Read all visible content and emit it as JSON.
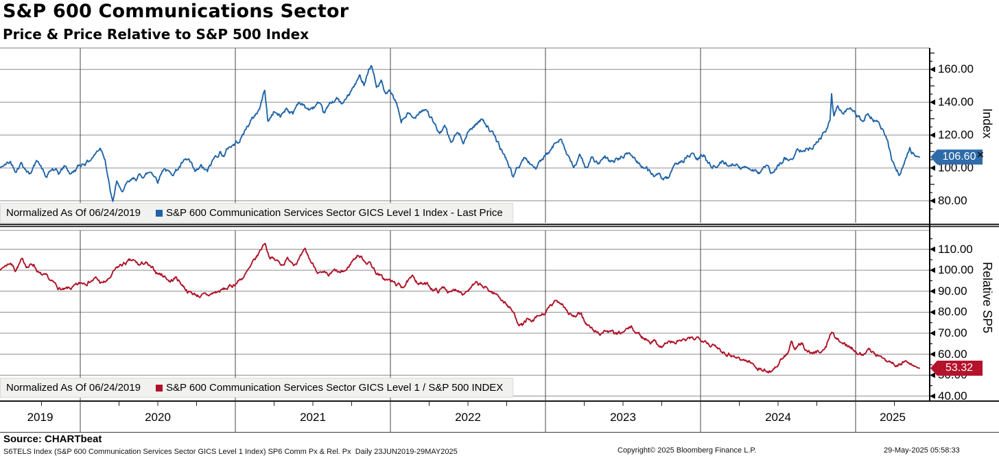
{
  "header": {
    "title": "S&P 600 Communications Sector",
    "subtitle": "Price & Price Relative to S&P 500 Index"
  },
  "panels": {
    "top": {
      "normalized_label": "Normalized As Of 06/24/2019",
      "series_label": "S&P 600 Communication Services Sector GICS Level 1 Index - Last Price",
      "axis_title": "Index",
      "last_price": "106.60"
    },
    "bottom": {
      "normalized_label": "Normalized As Of 06/24/2019",
      "series_label": "S&P 600 Communication Services Sector GICS Level 1 / S&P 500 INDEX",
      "axis_title": "Relative SP5",
      "last_price": "53.32"
    }
  },
  "icons": {
    "close_glyph": "×"
  },
  "colors": {
    "index_line": "#1f63a6",
    "index_badge": "#2e6ba8",
    "relative_line": "#ae1126",
    "relative_badge": "#b5122c",
    "grid": "#8c8c8c",
    "year_line": "#454545",
    "legend_bg": "#f1f1f0"
  },
  "footer": {
    "source": "Source: CHARTbeat",
    "description": "S6TELS Index (S&P 600 Communication Services Sector GICS Level 1 Index) SP6 Comm Px & Rel. Px  Daily 23JUN2019-29MAY2025",
    "copyright": "Copyright© 2025 Bloomberg Finance L.P.",
    "timestamp": "29-May-2025 05:58:33"
  },
  "chart_data": [
    {
      "type": "line",
      "title": "S&P 600 Communication Services Sector GICS Level 1 Index - Last Price",
      "normalized_as_of": "06/24/2019",
      "axis_title": "Index",
      "last_price": 106.6,
      "x_range": [
        2019.479,
        2025.412
      ],
      "x_tick_labels": [
        "2019",
        "2020",
        "2021",
        "2022",
        "2023",
        "2024",
        "2025"
      ],
      "yticks": [
        80,
        100,
        120,
        140,
        160
      ],
      "ylim": [
        66.5,
        173
      ],
      "grid": true,
      "legend_position": "bottom-strip",
      "points": [
        [
          2019.48,
          100
        ],
        [
          2019.52,
          102
        ],
        [
          2019.55,
          103.5
        ],
        [
          2019.58,
          99
        ],
        [
          2019.62,
          104
        ],
        [
          2019.67,
          97
        ],
        [
          2019.7,
          101
        ],
        [
          2019.73,
          105
        ],
        [
          2019.78,
          94
        ],
        [
          2019.82,
          99
        ],
        [
          2019.86,
          96
        ],
        [
          2019.9,
          101
        ],
        [
          2019.94,
          96.5
        ],
        [
          2019.98,
          100
        ],
        [
          2020.02,
          103
        ],
        [
          2020.06,
          105
        ],
        [
          2020.1,
          109
        ],
        [
          2020.13,
          113
        ],
        [
          2020.16,
          107
        ],
        [
          2020.19,
          88
        ],
        [
          2020.21,
          78
        ],
        [
          2020.235,
          92
        ],
        [
          2020.26,
          85
        ],
        [
          2020.3,
          89
        ],
        [
          2020.34,
          92
        ],
        [
          2020.38,
          95
        ],
        [
          2020.42,
          96
        ],
        [
          2020.46,
          98
        ],
        [
          2020.5,
          93
        ],
        [
          2020.54,
          101
        ],
        [
          2020.58,
          96
        ],
        [
          2020.62,
          99
        ],
        [
          2020.66,
          103
        ],
        [
          2020.7,
          104
        ],
        [
          2020.74,
          96
        ],
        [
          2020.78,
          100
        ],
        [
          2020.82,
          97
        ],
        [
          2020.86,
          105
        ],
        [
          2020.9,
          110
        ],
        [
          2020.93,
          108
        ],
        [
          2020.96,
          113
        ],
        [
          2021.0,
          115
        ],
        [
          2021.04,
          119
        ],
        [
          2021.08,
          126
        ],
        [
          2021.12,
          131
        ],
        [
          2021.16,
          137
        ],
        [
          2021.19,
          148
        ],
        [
          2021.21,
          128
        ],
        [
          2021.25,
          135
        ],
        [
          2021.29,
          131
        ],
        [
          2021.33,
          137
        ],
        [
          2021.37,
          133
        ],
        [
          2021.41,
          141
        ],
        [
          2021.45,
          137
        ],
        [
          2021.49,
          135
        ],
        [
          2021.53,
          139
        ],
        [
          2021.57,
          132
        ],
        [
          2021.61,
          138
        ],
        [
          2021.65,
          143
        ],
        [
          2021.69,
          138
        ],
        [
          2021.73,
          144
        ],
        [
          2021.77,
          150
        ],
        [
          2021.8,
          155
        ],
        [
          2021.83,
          152
        ],
        [
          2021.86,
          161
        ],
        [
          2021.88,
          163
        ],
        [
          2021.91,
          149
        ],
        [
          2021.94,
          153
        ],
        [
          2021.97,
          143
        ],
        [
          2022.0,
          146
        ],
        [
          2022.04,
          138
        ],
        [
          2022.07,
          128
        ],
        [
          2022.11,
          133
        ],
        [
          2022.15,
          129
        ],
        [
          2022.19,
          136
        ],
        [
          2022.23,
          137
        ],
        [
          2022.27,
          129
        ],
        [
          2022.31,
          121
        ],
        [
          2022.35,
          125
        ],
        [
          2022.39,
          115
        ],
        [
          2022.43,
          121
        ],
        [
          2022.47,
          117
        ],
        [
          2022.51,
          123
        ],
        [
          2022.55,
          127
        ],
        [
          2022.6,
          130
        ],
        [
          2022.64,
          124
        ],
        [
          2022.68,
          117
        ],
        [
          2022.72,
          110
        ],
        [
          2022.76,
          103
        ],
        [
          2022.79,
          95
        ],
        [
          2022.83,
          101
        ],
        [
          2022.86,
          106
        ],
        [
          2022.9,
          103
        ],
        [
          2022.94,
          100
        ],
        [
          2022.98,
          105
        ],
        [
          2023.02,
          108
        ],
        [
          2023.06,
          114
        ],
        [
          2023.1,
          120
        ],
        [
          2023.14,
          108
        ],
        [
          2023.18,
          100
        ],
        [
          2023.22,
          106
        ],
        [
          2023.26,
          101
        ],
        [
          2023.3,
          106
        ],
        [
          2023.34,
          102
        ],
        [
          2023.38,
          105
        ],
        [
          2023.42,
          103
        ],
        [
          2023.46,
          105
        ],
        [
          2023.5,
          107
        ],
        [
          2023.54,
          109
        ],
        [
          2023.58,
          105
        ],
        [
          2023.62,
          102
        ],
        [
          2023.66,
          99
        ],
        [
          2023.7,
          96
        ],
        [
          2023.74,
          94
        ],
        [
          2023.78,
          92
        ],
        [
          2023.82,
          97
        ],
        [
          2023.86,
          103
        ],
        [
          2023.9,
          106
        ],
        [
          2023.94,
          108
        ],
        [
          2023.98,
          105
        ],
        [
          2024.02,
          107
        ],
        [
          2024.06,
          103
        ],
        [
          2024.1,
          101
        ],
        [
          2024.14,
          104
        ],
        [
          2024.18,
          102
        ],
        [
          2024.22,
          104
        ],
        [
          2024.26,
          99
        ],
        [
          2024.3,
          101
        ],
        [
          2024.34,
          100
        ],
        [
          2024.38,
          98
        ],
        [
          2024.42,
          101
        ],
        [
          2024.46,
          96
        ],
        [
          2024.5,
          100
        ],
        [
          2024.54,
          106
        ],
        [
          2024.58,
          104
        ],
        [
          2024.62,
          110
        ],
        [
          2024.66,
          113
        ],
        [
          2024.7,
          112
        ],
        [
          2024.74,
          116
        ],
        [
          2024.78,
          120
        ],
        [
          2024.81,
          123
        ],
        [
          2024.835,
          128
        ],
        [
          2024.845,
          144.5
        ],
        [
          2024.86,
          131
        ],
        [
          2024.885,
          137.5
        ],
        [
          2024.91,
          133
        ],
        [
          2024.94,
          136
        ],
        [
          2024.97,
          135
        ],
        [
          2025.0,
          132
        ],
        [
          2025.04,
          128
        ],
        [
          2025.08,
          133
        ],
        [
          2025.12,
          130
        ],
        [
          2025.16,
          126
        ],
        [
          2025.2,
          118
        ],
        [
          2025.24,
          103
        ],
        [
          2025.28,
          97
        ],
        [
          2025.32,
          105
        ],
        [
          2025.35,
          112
        ],
        [
          2025.38,
          108
        ],
        [
          2025.412,
          106.6
        ]
      ]
    },
    {
      "type": "line",
      "title": "S&P 600 Communication Services Sector GICS Level 1 / S&P 500 INDEX",
      "normalized_as_of": "06/24/2019",
      "axis_title": "Relative SP5",
      "last_price": 53.32,
      "x_range": [
        2019.479,
        2025.412
      ],
      "x_tick_labels": [
        "2019",
        "2020",
        "2021",
        "2022",
        "2023",
        "2024",
        "2025"
      ],
      "yticks": [
        40,
        50,
        60,
        70,
        80,
        90,
        100,
        110
      ],
      "ylim": [
        37.5,
        119
      ],
      "grid": true,
      "legend_position": "bottom-strip",
      "points": [
        [
          2019.48,
          100
        ],
        [
          2019.52,
          102.5
        ],
        [
          2019.55,
          104
        ],
        [
          2019.58,
          100.5
        ],
        [
          2019.62,
          104.5
        ],
        [
          2019.66,
          102
        ],
        [
          2019.7,
          103
        ],
        [
          2019.74,
          98
        ],
        [
          2019.78,
          96
        ],
        [
          2019.82,
          93.5
        ],
        [
          2019.86,
          91.5
        ],
        [
          2019.9,
          90
        ],
        [
          2019.94,
          91
        ],
        [
          2019.98,
          92
        ],
        [
          2020.02,
          94
        ],
        [
          2020.06,
          95.5
        ],
        [
          2020.1,
          96
        ],
        [
          2020.14,
          93.5
        ],
        [
          2020.18,
          95
        ],
        [
          2020.22,
          99
        ],
        [
          2020.26,
          102
        ],
        [
          2020.3,
          103.5
        ],
        [
          2020.34,
          104
        ],
        [
          2020.38,
          102
        ],
        [
          2020.42,
          103.5
        ],
        [
          2020.46,
          100
        ],
        [
          2020.5,
          98.5
        ],
        [
          2020.54,
          97.5
        ],
        [
          2020.58,
          95
        ],
        [
          2020.62,
          96.5
        ],
        [
          2020.66,
          93
        ],
        [
          2020.7,
          90
        ],
        [
          2020.74,
          88.5
        ],
        [
          2020.78,
          88
        ],
        [
          2020.82,
          87.5
        ],
        [
          2020.86,
          89
        ],
        [
          2020.9,
          90
        ],
        [
          2020.94,
          91
        ],
        [
          2020.98,
          92.5
        ],
        [
          2021.02,
          95
        ],
        [
          2021.06,
          97.5
        ],
        [
          2021.1,
          101
        ],
        [
          2021.14,
          106
        ],
        [
          2021.19,
          113.5
        ],
        [
          2021.22,
          107
        ],
        [
          2021.26,
          104.5
        ],
        [
          2021.3,
          103
        ],
        [
          2021.34,
          105.5
        ],
        [
          2021.38,
          104
        ],
        [
          2021.42,
          106
        ],
        [
          2021.45,
          108.5
        ],
        [
          2021.49,
          103.5
        ],
        [
          2021.53,
          100
        ],
        [
          2021.56,
          98
        ],
        [
          2021.6,
          96.5
        ],
        [
          2021.64,
          99
        ],
        [
          2021.68,
          98
        ],
        [
          2021.72,
          100
        ],
        [
          2021.75,
          104
        ],
        [
          2021.79,
          107.5
        ],
        [
          2021.83,
          105
        ],
        [
          2021.87,
          103.5
        ],
        [
          2021.91,
          99
        ],
        [
          2021.95,
          96
        ],
        [
          2021.99,
          95
        ],
        [
          2022.03,
          93.5
        ],
        [
          2022.07,
          92
        ],
        [
          2022.11,
          94.5
        ],
        [
          2022.15,
          96
        ],
        [
          2022.19,
          94
        ],
        [
          2022.23,
          93
        ],
        [
          2022.27,
          91.5
        ],
        [
          2022.31,
          90
        ],
        [
          2022.35,
          92
        ],
        [
          2022.39,
          89
        ],
        [
          2022.43,
          91
        ],
        [
          2022.47,
          90
        ],
        [
          2022.51,
          91.5
        ],
        [
          2022.55,
          93
        ],
        [
          2022.59,
          92
        ],
        [
          2022.63,
          90.5
        ],
        [
          2022.67,
          89
        ],
        [
          2022.71,
          87
        ],
        [
          2022.75,
          84
        ],
        [
          2022.79,
          80
        ],
        [
          2022.82,
          76
        ],
        [
          2022.85,
          74
        ],
        [
          2022.88,
          76.5
        ],
        [
          2022.91,
          74.5
        ],
        [
          2022.95,
          77
        ],
        [
          2022.99,
          79
        ],
        [
          2023.03,
          82
        ],
        [
          2023.07,
          85
        ],
        [
          2023.11,
          84.5
        ],
        [
          2023.15,
          80
        ],
        [
          2023.19,
          77.5
        ],
        [
          2023.23,
          78.5
        ],
        [
          2023.27,
          74
        ],
        [
          2023.31,
          71
        ],
        [
          2023.35,
          70
        ],
        [
          2023.39,
          71.5
        ],
        [
          2023.43,
          70
        ],
        [
          2023.47,
          69
        ],
        [
          2023.51,
          70.5
        ],
        [
          2023.55,
          72.5
        ],
        [
          2023.59,
          70
        ],
        [
          2023.63,
          68
        ],
        [
          2023.67,
          67
        ],
        [
          2023.71,
          66
        ],
        [
          2023.75,
          64
        ],
        [
          2023.79,
          66
        ],
        [
          2023.83,
          65
        ],
        [
          2023.87,
          66.5
        ],
        [
          2023.91,
          66
        ],
        [
          2023.95,
          67
        ],
        [
          2023.99,
          68
        ],
        [
          2024.03,
          67.5
        ],
        [
          2024.07,
          64.5
        ],
        [
          2024.11,
          63
        ],
        [
          2024.15,
          61.5
        ],
        [
          2024.19,
          60.5
        ],
        [
          2024.23,
          59
        ],
        [
          2024.27,
          57.5
        ],
        [
          2024.31,
          56.5
        ],
        [
          2024.35,
          54.5
        ],
        [
          2024.4,
          52.5
        ],
        [
          2024.44,
          51.8
        ],
        [
          2024.48,
          54
        ],
        [
          2024.52,
          57
        ],
        [
          2024.56,
          60
        ],
        [
          2024.585,
          66
        ],
        [
          2024.61,
          61.5
        ],
        [
          2024.65,
          64.5
        ],
        [
          2024.69,
          62
        ],
        [
          2024.73,
          60.5
        ],
        [
          2024.77,
          61.5
        ],
        [
          2024.81,
          63.5
        ],
        [
          2024.845,
          71.2
        ],
        [
          2024.88,
          67
        ],
        [
          2024.92,
          65
        ],
        [
          2024.96,
          63.5
        ],
        [
          2025.0,
          62.5
        ],
        [
          2025.04,
          60.5
        ],
        [
          2025.08,
          62
        ],
        [
          2025.12,
          61
        ],
        [
          2025.16,
          58.5
        ],
        [
          2025.2,
          57.5
        ],
        [
          2025.24,
          56
        ],
        [
          2025.28,
          55
        ],
        [
          2025.32,
          56.5
        ],
        [
          2025.36,
          54.5
        ],
        [
          2025.412,
          53.32
        ]
      ]
    }
  ]
}
